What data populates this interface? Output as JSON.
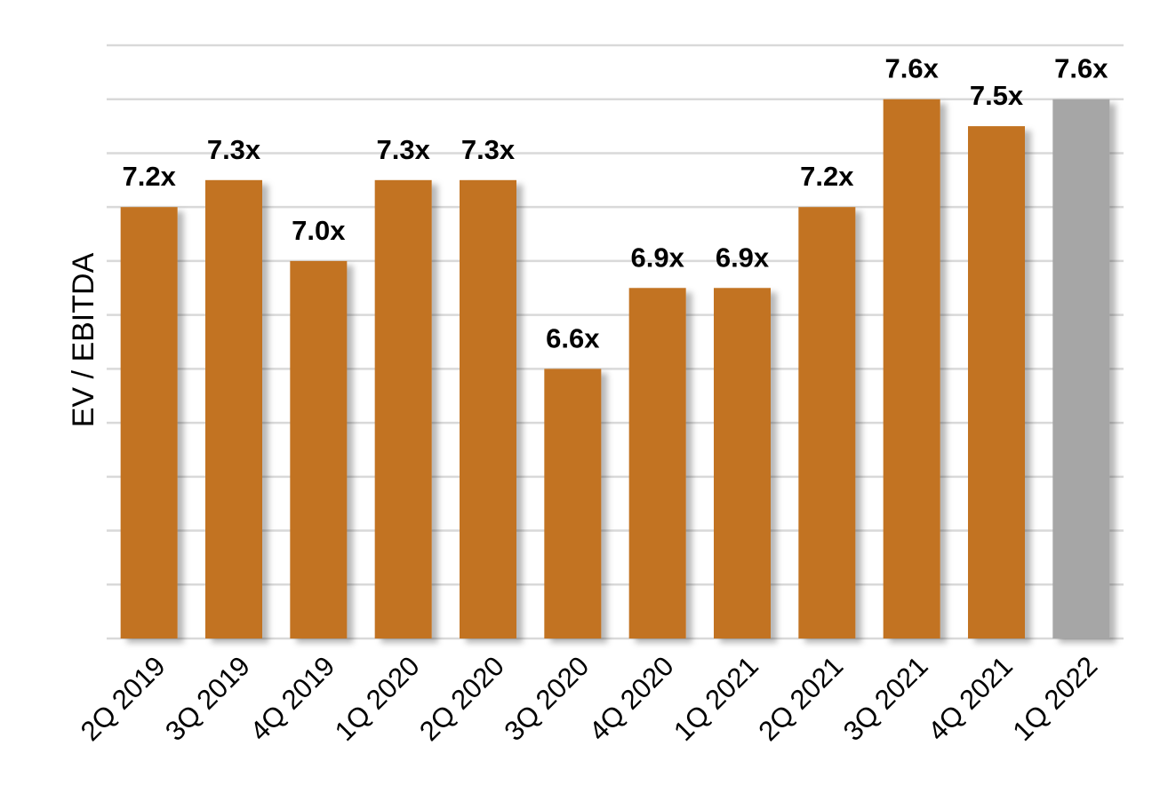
{
  "chart_data": {
    "type": "bar",
    "ylabel": "EV / EBITDA",
    "xlabel": "",
    "categories": [
      "2Q 2019",
      "3Q 2019",
      "4Q 2019",
      "1Q 2020",
      "2Q 2020",
      "3Q 2020",
      "4Q 2020",
      "1Q 2021",
      "2Q 2021",
      "3Q 2021",
      "4Q 2021",
      "1Q 2022"
    ],
    "values": [
      7.2,
      7.3,
      7.0,
      7.3,
      7.3,
      6.6,
      6.9,
      6.9,
      7.2,
      7.6,
      7.5,
      7.6
    ],
    "data_labels": [
      "7.2x",
      "7.3x",
      "7.0x",
      "7.3x",
      "7.3x",
      "6.6x",
      "6.9x",
      "6.9x",
      "7.2x",
      "7.6x",
      "7.5x",
      "7.6x"
    ],
    "ylim": [
      5.6,
      7.8
    ],
    "gridline_step": 0.2,
    "grid": true,
    "legend": "none",
    "colors": {
      "bar": "#c27321",
      "highlight_bar": "#a6a6a6",
      "grid": "#d9d9d9"
    },
    "highlight_index": 11
  }
}
